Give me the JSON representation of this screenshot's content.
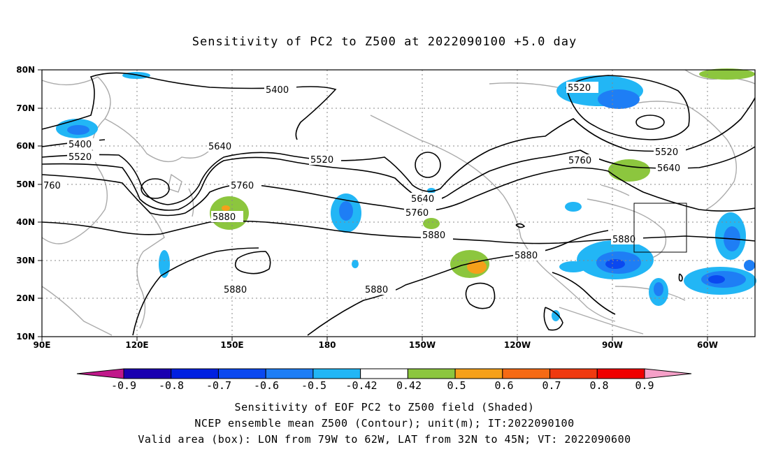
{
  "title": "Sensitivity of PC2 to Z500 at 2022090100 +5.0 day",
  "axes": {
    "x_ticks": [
      "90E",
      "120E",
      "150E",
      "180",
      "150W",
      "120W",
      "90W",
      "60W"
    ],
    "y_ticks": [
      "10N",
      "20N",
      "30N",
      "40N",
      "50N",
      "60N",
      "70N",
      "80N"
    ]
  },
  "contour_labels": [
    "5400",
    "5400",
    "5520",
    "5520",
    "5520",
    "5520",
    "5640",
    "5640",
    "5640",
    "5760",
    "5760",
    "5760",
    "760",
    "5880",
    "5880",
    "5880",
    "5880",
    "5880",
    "5880"
  ],
  "colorbar": {
    "labels": [
      "-0.9",
      "-0.8",
      "-0.7",
      "-0.6",
      "-0.5",
      "-0.42",
      "0.42",
      "0.5",
      "0.6",
      "0.7",
      "0.8",
      "0.9"
    ],
    "colors": [
      "#1a00b0",
      "#0020e0",
      "#0a48f0",
      "#1e7ef5",
      "#22b6f5",
      "#ffffff",
      "#8cc63e",
      "#f5a01a",
      "#f56a14",
      "#f03a10",
      "#f00000"
    ],
    "low_extend_color": "#c0188a",
    "high_extend_color": "#f5a0c8"
  },
  "footer": {
    "line1": "Sensitivity of EOF PC2 to Z500 field (Shaded)",
    "line2": "NCEP ensemble mean Z500 (Contour); unit(m); IT:2022090100",
    "line3": "Valid area (box): LON from 79W to 62W, LAT from 32N to 45N; VT: 2022090600"
  },
  "valid_box": {
    "lon_west": -79,
    "lon_east": -62,
    "lat_south": 32,
    "lat_north": 45
  }
}
